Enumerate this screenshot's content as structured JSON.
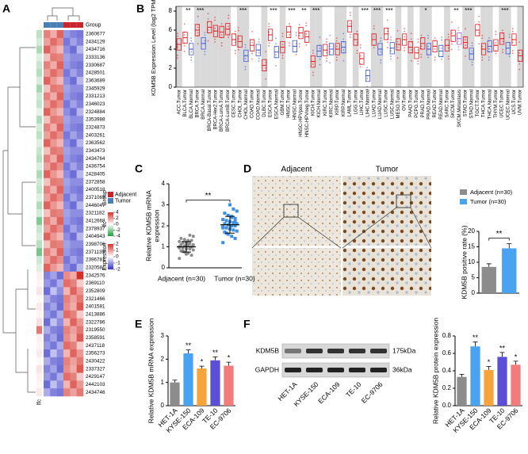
{
  "chart_data": [
    {
      "type": "heatmap",
      "panel": "A",
      "group_label": "Group",
      "lfc_label": "lfc",
      "rows": [
        "2360677",
        "2434129",
        "2434716",
        "2333136",
        "2330687",
        "2428501",
        "2363689",
        "2345929",
        "2331213",
        "2346023",
        "2324884",
        "2353988",
        "2324873",
        "2403261",
        "2363562",
        "2343473",
        "2434764",
        "2436754",
        "2428405",
        "2372858",
        "2400518",
        "2371065",
        "2446047",
        "2321182",
        "2412668",
        "2378937",
        "2404943",
        "2398706",
        "2371139",
        "2396781",
        "2320581",
        "2342576",
        "2369110",
        "2352809",
        "2321466",
        "2401581",
        "2413886",
        "2322786",
        "2319550",
        "2358591",
        "2437118",
        "2356273",
        "2430422",
        "2337327",
        "2429147",
        "2442103",
        "2434746"
      ],
      "group": [
        "Tumor",
        "Tumor",
        "Tumor",
        "Adjacent",
        "Adjacent",
        "Adjacent"
      ],
      "group_colors": {
        "Adjacent": "#c8262c",
        "Tumor": "#4a80b4"
      },
      "expression_colors": [
        "#3030c8",
        "#ffffff",
        "#d62f27"
      ],
      "lfc_colors": [
        "#1b9e3a",
        "#ffffff",
        "#d62f27"
      ],
      "values": [
        [
          1.2,
          0.8,
          1.5,
          -1.0,
          -1.2,
          -1.3
        ],
        [
          0.9,
          1.4,
          1.1,
          -1.3,
          -0.9,
          -1.2
        ],
        [
          1.5,
          1.0,
          0.7,
          -1.1,
          -1.4,
          -0.7
        ],
        [
          0.6,
          1.3,
          1.2,
          -0.9,
          -1.1,
          -1.1
        ],
        [
          1.2,
          0.8,
          1.5,
          -1.0,
          -1.2,
          -1.3
        ],
        [
          0.9,
          1.4,
          1.1,
          -1.3,
          -0.9,
          -1.2
        ],
        [
          1.5,
          1.0,
          0.7,
          -1.1,
          -1.4,
          -0.7
        ],
        [
          0.6,
          1.3,
          1.2,
          -0.9,
          -1.1,
          -1.1
        ],
        [
          1.2,
          0.8,
          1.5,
          -1.0,
          -1.2,
          -1.3
        ],
        [
          0.9,
          1.4,
          1.1,
          -1.3,
          -0.9,
          -1.2
        ],
        [
          1.5,
          1.0,
          0.7,
          -1.1,
          -1.4,
          -0.7
        ],
        [
          0.6,
          1.3,
          1.2,
          -0.9,
          -1.1,
          -1.1
        ],
        [
          1.2,
          0.8,
          1.5,
          -1.0,
          -1.2,
          -1.3
        ],
        [
          0.9,
          1.4,
          1.1,
          -1.3,
          -0.9,
          -1.2
        ],
        [
          1.5,
          1.0,
          0.7,
          -1.1,
          -1.4,
          -0.7
        ],
        [
          0.6,
          1.3,
          1.2,
          -0.9,
          -1.1,
          -1.1
        ],
        [
          1.2,
          0.8,
          1.5,
          -1.0,
          -1.2,
          -1.3
        ],
        [
          0.9,
          1.4,
          1.1,
          -1.3,
          -0.9,
          -1.2
        ],
        [
          1.5,
          1.0,
          0.7,
          -1.1,
          -1.4,
          -0.7
        ],
        [
          0.6,
          1.3,
          1.2,
          -0.9,
          -1.1,
          -1.1
        ],
        [
          1.2,
          0.8,
          1.5,
          -1.0,
          -1.2,
          -1.3
        ],
        [
          0.9,
          1.4,
          1.1,
          -1.3,
          -0.9,
          -1.2
        ],
        [
          1.5,
          1.0,
          0.7,
          -1.1,
          -1.4,
          -0.7
        ],
        [
          0.6,
          1.3,
          1.2,
          -0.9,
          -1.1,
          -1.1
        ],
        [
          1.2,
          0.8,
          1.5,
          -1.0,
          -1.2,
          -1.3
        ],
        [
          0.9,
          1.4,
          1.1,
          -1.3,
          -0.9,
          -1.2
        ],
        [
          1.5,
          1.0,
          0.7,
          -1.1,
          -1.4,
          -0.7
        ],
        [
          0.6,
          1.3,
          1.2,
          -0.9,
          -1.1,
          -1.1
        ],
        [
          1.2,
          0.8,
          1.5,
          -1.0,
          -1.2,
          -1.3
        ],
        [
          0.9,
          1.4,
          1.1,
          -1.3,
          -0.9,
          -1.2
        ],
        [
          1.5,
          1.0,
          0.7,
          -1.1,
          -1.4,
          -0.7
        ],
        [
          -1.2,
          -0.9,
          -1.4,
          1.1,
          0.8,
          2.0
        ],
        [
          -1.0,
          -1.3,
          -0.8,
          1.4,
          1.2,
          0.5
        ],
        [
          -1.4,
          -0.6,
          -1.1,
          0.7,
          1.5,
          1.0
        ],
        [
          -0.8,
          -1.2,
          -1.3,
          1.2,
          0.9,
          1.3
        ],
        [
          -1.2,
          -0.9,
          -1.4,
          1.1,
          0.8,
          1.6
        ],
        [
          -1.0,
          -1.3,
          -0.8,
          1.4,
          1.2,
          0.5
        ],
        [
          -1.4,
          -0.6,
          -1.1,
          0.7,
          1.5,
          1.0
        ],
        [
          -0.8,
          -1.2,
          -1.3,
          1.2,
          0.9,
          1.3
        ],
        [
          -1.2,
          -0.9,
          -1.4,
          1.1,
          0.8,
          1.6
        ],
        [
          -1.0,
          -1.3,
          -0.8,
          1.4,
          1.2,
          0.5
        ],
        [
          -1.4,
          -0.6,
          -1.1,
          0.7,
          1.5,
          1.0
        ],
        [
          -0.8,
          -1.2,
          -1.3,
          1.2,
          0.9,
          1.3
        ],
        [
          -1.2,
          -0.9,
          -1.4,
          1.1,
          0.8,
          1.6
        ],
        [
          -1.0,
          -1.3,
          -0.8,
          1.4,
          1.2,
          0.5
        ],
        [
          -1.4,
          -0.6,
          -1.1,
          0.7,
          1.5,
          1.0
        ],
        [
          -0.8,
          -1.2,
          -1.3,
          1.2,
          0.9,
          1.3
        ]
      ],
      "lfc": [
        -1.2,
        -0.8,
        -1.5,
        -0.6,
        -1.0,
        -1.3,
        -0.7,
        -1.6,
        -0.9,
        -1.1,
        -0.5,
        -1.4,
        -0.8,
        -1.2,
        -0.6,
        -1.0,
        -1.3,
        -0.7,
        -1.5,
        -0.9,
        -1.1,
        -0.6,
        -1.4,
        -0.8,
        -2.2,
        -1.0,
        -0.7,
        -1.3,
        -2.4,
        -0.9,
        -0.6,
        0.3,
        0.2,
        0.5,
        0.1,
        0.4,
        0.2,
        0.6,
        2.6,
        0.3,
        0.2,
        0.4,
        0.1,
        0.5,
        0.3,
        0.2,
        0.4
      ],
      "legend_group_title": "Group",
      "legend_groups": [
        "Adjacent",
        "Tumor"
      ],
      "lfc_title": "lfc",
      "lfc_ticks": [
        4,
        2,
        0,
        -2,
        -4
      ],
      "expression_title": "Expression",
      "expression_ticks": [
        2,
        1,
        0,
        -1,
        -2
      ]
    },
    {
      "type": "box",
      "panel": "B",
      "ylabel": "KDM5B Expression Level (log2 TPM)",
      "ylim": [
        0,
        8.5
      ],
      "yticks": [
        0,
        2,
        4,
        6,
        8
      ],
      "grid_shading": "#d9d9d9",
      "categories": [
        "ACC.Tumor",
        "BLCA.Tumor",
        "BLCA.Normal",
        "BRCA.Tumor",
        "BRCA.Normal",
        "BRCA-Basal.Tumor",
        "BRCA-Her2.Tumor",
        "BRCA-LumA.Tumor",
        "BRCA-LumB.Tumor",
        "CESC.Tumor",
        "CHOL.Tumor",
        "CHOL.Normal",
        "COAD.Tumor",
        "COAD.Normal",
        "DLBC.Tumor",
        "ESCA.Tumor",
        "ESCA.Normal",
        "GBM.Tumor",
        "HNSC.Tumor",
        "HNSC.Normal",
        "HNSC-HPVpos.Tumor",
        "HNSC-HPVneg.Tumor",
        "KICH.Tumor",
        "KICH.Normal",
        "KIRC.Tumor",
        "KIRC.Normal",
        "KIRP.Tumor",
        "KIRP.Normal",
        "LAML.Tumor",
        "LGG.Tumor",
        "LIHC.Tumor",
        "LIHC.Normal",
        "LUAD.Tumor",
        "LUAD.Normal",
        "LUSC.Tumor",
        "LUSC.Normal",
        "MESO.Tumor",
        "OV.Tumor",
        "PAAD.Tumor",
        "PCPG.Tumor",
        "PRAD.Tumor",
        "PRAD.Normal",
        "READ.Tumor",
        "READ.Normal",
        "SARC.Tumor",
        "SKCM.Tumor",
        "SKCM.Metastasis",
        "STAD.Tumor",
        "STAD.Normal",
        "TGCT.Tumor",
        "THCA.Tumor",
        "THCA.Normal",
        "THYM.Tumor",
        "UCEC.Tumor",
        "UCEC.Normal",
        "UCS.Tumor",
        "UVM.Tumor"
      ],
      "median": [
        4.5,
        5.2,
        4.0,
        6.0,
        4.6,
        6.3,
        5.9,
        5.8,
        6.1,
        5.0,
        4.8,
        3.3,
        4.4,
        3.9,
        2.3,
        5.5,
        3.7,
        4.2,
        5.8,
        4.3,
        5.7,
        5.3,
        2.7,
        3.8,
        3.9,
        4.0,
        4.0,
        4.2,
        6.4,
        5.0,
        3.0,
        1.2,
        5.0,
        4.0,
        5.6,
        4.1,
        4.5,
        5.0,
        4.2,
        3.6,
        4.6,
        4.0,
        4.3,
        3.8,
        4.4,
        5.4,
        5.1,
        4.7,
        3.5,
        6.0,
        4.0,
        4.3,
        4.4,
        5.1,
        4.1,
        5.0,
        3.3
      ],
      "q1": [
        3.9,
        4.6,
        3.4,
        5.4,
        4.0,
        5.7,
        5.3,
        5.2,
        5.5,
        4.4,
        4.2,
        2.7,
        3.8,
        3.3,
        1.7,
        4.9,
        3.1,
        3.6,
        5.2,
        3.7,
        5.1,
        4.7,
        2.1,
        3.2,
        3.3,
        3.4,
        3.4,
        3.6,
        5.8,
        4.4,
        2.4,
        0.6,
        4.4,
        3.4,
        5.0,
        3.5,
        3.9,
        4.4,
        3.6,
        3.0,
        4.0,
        3.4,
        3.7,
        3.2,
        3.8,
        4.8,
        4.5,
        4.1,
        2.9,
        5.4,
        3.4,
        3.7,
        3.8,
        4.5,
        3.5,
        4.4,
        2.7
      ],
      "q3": [
        5.1,
        5.8,
        4.6,
        6.6,
        5.2,
        6.9,
        6.5,
        6.4,
        6.7,
        5.6,
        5.4,
        3.9,
        5.0,
        4.5,
        2.9,
        6.1,
        4.3,
        4.8,
        6.4,
        4.9,
        6.3,
        5.9,
        3.3,
        4.4,
        4.5,
        4.6,
        4.6,
        4.8,
        7.0,
        5.6,
        3.6,
        1.8,
        5.6,
        4.6,
        6.2,
        4.7,
        5.1,
        5.6,
        4.8,
        4.2,
        5.2,
        4.6,
        4.9,
        4.4,
        5.0,
        6.0,
        5.7,
        5.3,
        4.1,
        6.6,
        4.6,
        4.9,
        5.0,
        5.7,
        4.7,
        5.6,
        3.9
      ],
      "colors": [
        "#e41a1c",
        "#e41a1c",
        "#3c5ad6",
        "#e41a1c",
        "#3c5ad6",
        "#e41a1c",
        "#e41a1c",
        "#e41a1c",
        "#e41a1c",
        "#e41a1c",
        "#e41a1c",
        "#3c5ad6",
        "#e41a1c",
        "#3c5ad6",
        "#e41a1c",
        "#e41a1c",
        "#3c5ad6",
        "#e41a1c",
        "#e41a1c",
        "#3c5ad6",
        "#e41a1c",
        "#e41a1c",
        "#e41a1c",
        "#3c5ad6",
        "#e41a1c",
        "#3c5ad6",
        "#e41a1c",
        "#3c5ad6",
        "#e41a1c",
        "#e41a1c",
        "#e41a1c",
        "#3c5ad6",
        "#e41a1c",
        "#3c5ad6",
        "#e41a1c",
        "#3c5ad6",
        "#e41a1c",
        "#e41a1c",
        "#e41a1c",
        "#e41a1c",
        "#e41a1c",
        "#3c5ad6",
        "#e41a1c",
        "#3c5ad6",
        "#e41a1c",
        "#e41a1c",
        "#9a5bd1",
        "#e41a1c",
        "#3c5ad6",
        "#e41a1c",
        "#e41a1c",
        "#3c5ad6",
        "#e41a1c",
        "#e41a1c",
        "#3c5ad6",
        "#e41a1c",
        "#e41a1c"
      ],
      "significance": [
        null,
        "**",
        null,
        "***",
        null,
        null,
        null,
        null,
        null,
        null,
        "***",
        null,
        null,
        null,
        null,
        "***",
        null,
        null,
        "***",
        null,
        "**",
        null,
        "***",
        null,
        null,
        null,
        null,
        null,
        null,
        null,
        "***",
        null,
        "***",
        null,
        "***",
        null,
        null,
        null,
        null,
        null,
        "*",
        null,
        null,
        null,
        null,
        "**",
        null,
        "***",
        null,
        null,
        null,
        null,
        null,
        "***",
        null,
        null,
        null
      ]
    },
    {
      "type": "dot",
      "panel": "C",
      "ylabel": [
        "Relative KDM5B mRNA",
        "expression"
      ],
      "ylim": [
        0,
        4
      ],
      "yticks": [
        0,
        1,
        2,
        3,
        4
      ],
      "categories": [
        "Adjacent (n=30)",
        "Tumor (n=30)"
      ],
      "colors": [
        "#8c8c8c",
        "#3d8fe6"
      ],
      "markers": [
        "circle",
        "square"
      ],
      "points": [
        [
          0.45,
          0.6,
          0.7,
          0.75,
          0.8,
          0.85,
          0.9,
          0.9,
          0.95,
          1.0,
          1.0,
          1.05,
          1.05,
          1.1,
          1.1,
          1.15,
          1.2,
          1.2,
          1.25,
          1.3,
          1.3,
          1.35,
          1.4,
          1.5,
          1.55,
          0.65,
          0.8,
          0.95,
          1.0,
          1.15
        ],
        [
          1.2,
          1.4,
          1.5,
          1.6,
          1.7,
          1.75,
          1.8,
          1.85,
          1.9,
          1.95,
          2.0,
          2.0,
          2.05,
          2.1,
          2.1,
          2.15,
          2.2,
          2.25,
          2.3,
          2.35,
          2.4,
          2.5,
          2.6,
          2.7,
          2.8,
          3.0,
          1.65,
          1.9,
          2.2,
          2.45
        ]
      ],
      "means": [
        1.0,
        2.05
      ],
      "sd": [
        0.25,
        0.4
      ],
      "significance": "**"
    },
    {
      "type": "image",
      "panel": "D",
      "labels": [
        "Adjacent",
        "Tumor"
      ]
    },
    {
      "type": "bar",
      "ylabel": "KDM5B positive rate (%)",
      "ylim": [
        0,
        20
      ],
      "yticks": [
        0,
        5,
        10,
        15,
        20
      ],
      "categories": [
        "Adjacent (n=30)",
        "Tumor (n=30)"
      ],
      "values": [
        8.5,
        14.5
      ],
      "errors": [
        1.0,
        1.5
      ],
      "colors": [
        "#8c8c8c",
        "#4aa3f0"
      ],
      "legend": true,
      "significance": "**"
    },
    {
      "type": "bar",
      "panel": "E",
      "ylabel": "Relative KDM5B mRNA expression",
      "ylim": [
        0,
        3
      ],
      "yticks": [
        0,
        1,
        2,
        3
      ],
      "categories": [
        "HET-1A",
        "KYSE-150",
        "ECA-109",
        "TE-10",
        "EC-9706"
      ],
      "values": [
        1.0,
        2.25,
        1.6,
        1.95,
        1.72
      ],
      "errors": [
        0.1,
        0.15,
        0.1,
        0.15,
        0.15
      ],
      "colors": [
        "#8c8c8c",
        "#4aa3f0",
        "#f5a33b",
        "#5b4fd6",
        "#f37b7b"
      ],
      "stars": [
        null,
        "**",
        "*",
        "**",
        "*"
      ]
    },
    {
      "type": "blot",
      "panel": "F",
      "bands": [
        "KDM5B",
        "GAPDH"
      ],
      "sizes": [
        "175kDa",
        "36kDa"
      ],
      "lanes": [
        "HET-1A",
        "KYSE-150",
        "ECA-109",
        "TE-10",
        "EC-9706"
      ]
    },
    {
      "type": "bar",
      "ylabel": "Relative KDM5B protein expression",
      "ylim": [
        0,
        0.8
      ],
      "yticks": [
        {
          "value": 0,
          "label": "0.0"
        },
        0.2,
        0.4,
        0.6,
        0.8
      ],
      "categories": [
        "HET-1A",
        "KYSE-150",
        "ECA-109",
        "TE-10",
        "EC-9706"
      ],
      "values": [
        0.33,
        0.68,
        0.41,
        0.56,
        0.47
      ],
      "errors": [
        0.03,
        0.05,
        0.04,
        0.05,
        0.04
      ],
      "colors": [
        "#8c8c8c",
        "#4aa3f0",
        "#f5a33b",
        "#5b4fd6",
        "#f37b7b"
      ],
      "stars": [
        null,
        "**",
        "*",
        "**",
        "*"
      ]
    }
  ]
}
